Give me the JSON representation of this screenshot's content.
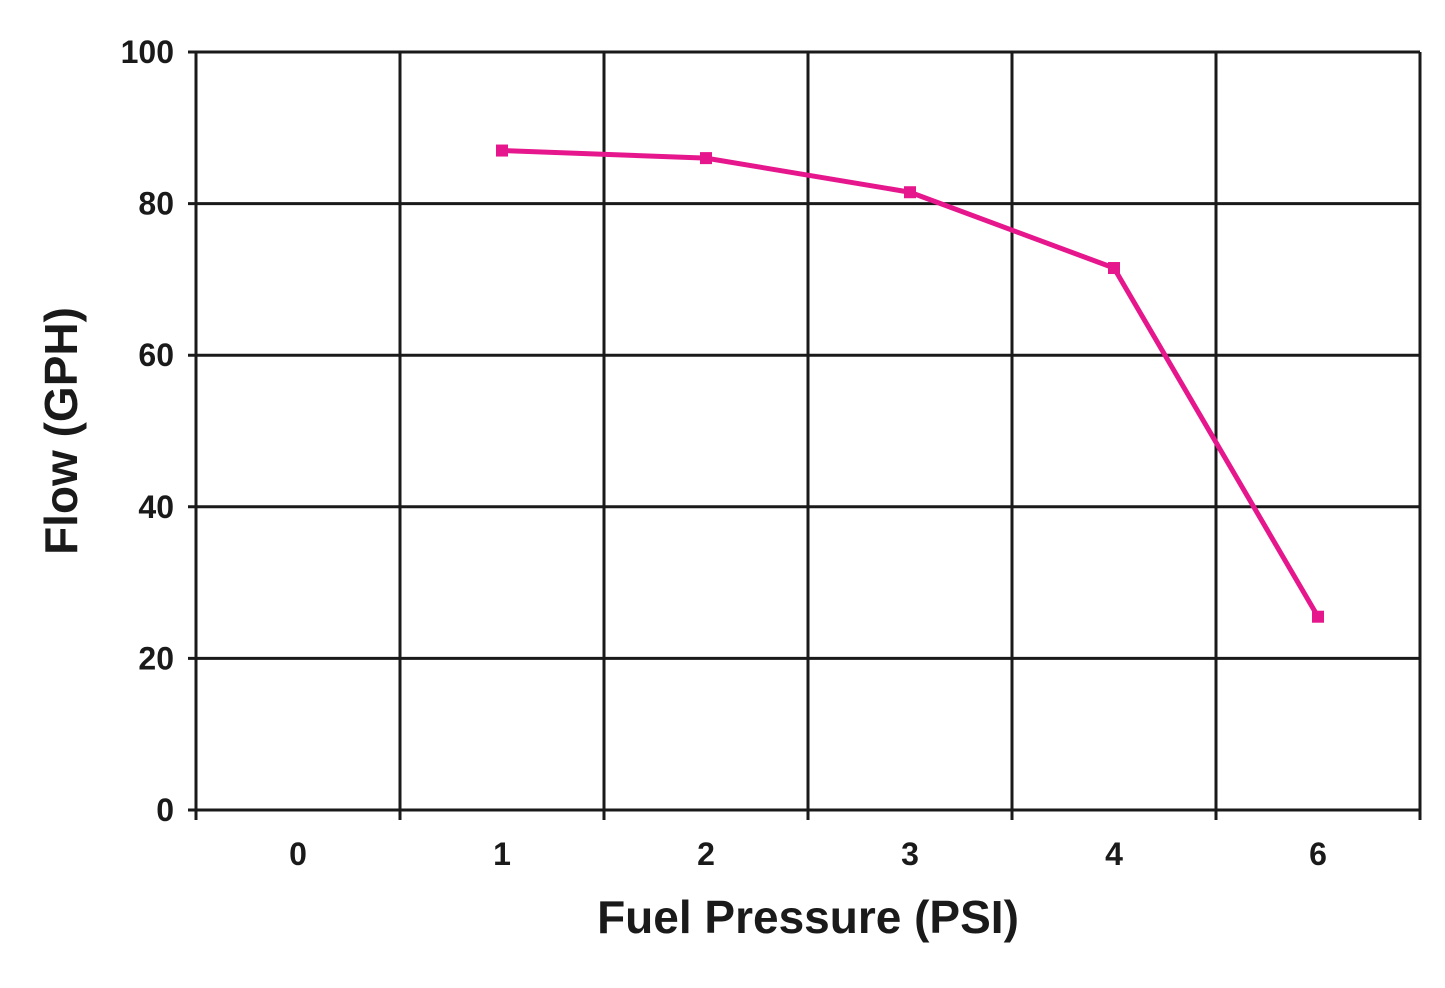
{
  "chart_data": {
    "type": "line",
    "title": "",
    "xlabel": "Fuel Pressure (PSI)",
    "ylabel": "Flow (GPH)",
    "categories": [
      "0",
      "1",
      "2",
      "3",
      "4",
      "6"
    ],
    "ylim": [
      0,
      100
    ],
    "yticks": [
      0,
      20,
      40,
      60,
      80,
      100
    ],
    "grid": true,
    "series": [
      {
        "color": "#e6168c",
        "marker": "square",
        "points": [
          {
            "x": "1",
            "y": 87
          },
          {
            "x": "2",
            "y": 86
          },
          {
            "x": "3",
            "y": 81.5
          },
          {
            "x": "4",
            "y": 71.5
          },
          {
            "x": "6",
            "y": 25.5
          }
        ]
      }
    ]
  }
}
